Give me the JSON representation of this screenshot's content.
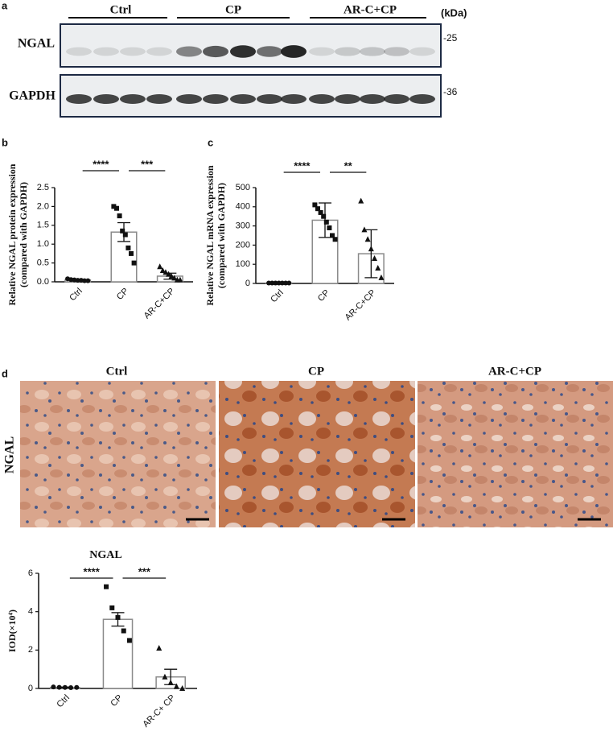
{
  "panel_labels": [
    "a",
    "b",
    "c",
    "d"
  ],
  "blot": {
    "groups": [
      "Ctrl",
      "CP",
      "AR-C+CP"
    ],
    "unit": "(kDa)",
    "rows": [
      {
        "label": "NGAL",
        "marker": "-25"
      },
      {
        "label": "GAPDH",
        "marker": "-36"
      }
    ]
  },
  "histology": {
    "columns": [
      "Ctrl",
      "CP",
      "AR-C+CP"
    ],
    "row_label": "NGAL"
  },
  "chart_data": [
    {
      "type": "bar",
      "ylabel": [
        "Relative NGAL protein expression",
        "(compared with GAPDH)"
      ],
      "categories": [
        "Ctrl",
        "CP",
        "AR-C+CP"
      ],
      "values": [
        0.05,
        1.32,
        0.15
      ],
      "errors": [
        0.02,
        0.25,
        0.08
      ],
      "points": [
        [
          0.08,
          0.06,
          0.05,
          0.04,
          0.04,
          0.03,
          0.03
        ],
        [
          2.0,
          1.95,
          1.75,
          1.35,
          1.25,
          0.9,
          0.75,
          0.5
        ],
        [
          0.4,
          0.3,
          0.25,
          0.2,
          0.15,
          0.1,
          0.05,
          0.05
        ]
      ],
      "markers": [
        "circle",
        "square",
        "triangle"
      ],
      "color": "#8a8a8a",
      "ylim": [
        0,
        2.5
      ],
      "yticks": [
        {
          "value": 0,
          "label": "0.0"
        },
        0.5,
        {
          "value": 1,
          "label": "1.0"
        },
        1.5,
        {
          "value": 2,
          "label": "2.0"
        },
        2.5
      ],
      "significance": [
        "****",
        "***"
      ]
    },
    {
      "type": "bar",
      "ylabel": [
        "Relative NGAL mRNA expression",
        "(compared with GAPDH)"
      ],
      "categories": [
        "Ctrl",
        "CP",
        "AR-C+CP"
      ],
      "values": [
        2,
        330,
        155
      ],
      "errors": [
        1,
        90,
        125
      ],
      "points": [
        [
          2,
          2,
          2,
          2,
          2,
          2,
          2
        ],
        [
          410,
          390,
          370,
          350,
          320,
          290,
          250,
          230
        ],
        [
          430,
          280,
          230,
          180,
          130,
          80,
          30
        ]
      ],
      "markers": [
        "circle",
        "square",
        "triangle"
      ],
      "color": "#8a8a8a",
      "ylim": [
        0,
        500
      ],
      "yticks": [
        0,
        100,
        200,
        300,
        400,
        500
      ],
      "significance": [
        "****",
        "**"
      ]
    },
    {
      "type": "bar",
      "title": "NGAL",
      "ylabel": [
        "IOD(×10⁴)"
      ],
      "categories": [
        "Ctrl",
        "CP",
        "AR-C+ CP"
      ],
      "values": [
        0.05,
        3.6,
        0.6
      ],
      "errors": [
        0.02,
        0.35,
        0.4
      ],
      "points": [
        [
          0.08,
          0.06,
          0.05,
          0.04,
          0.05
        ],
        [
          5.3,
          4.2,
          3.7,
          3.0,
          2.5
        ],
        [
          2.1,
          0.6,
          0.3,
          0.1,
          0.0
        ]
      ],
      "markers": [
        "circle",
        "square",
        "triangle"
      ],
      "color": "#8a8a8a",
      "ylim": [
        0,
        6
      ],
      "yticks": [
        0,
        2,
        4,
        6
      ],
      "significance": [
        "****",
        "***"
      ]
    }
  ]
}
